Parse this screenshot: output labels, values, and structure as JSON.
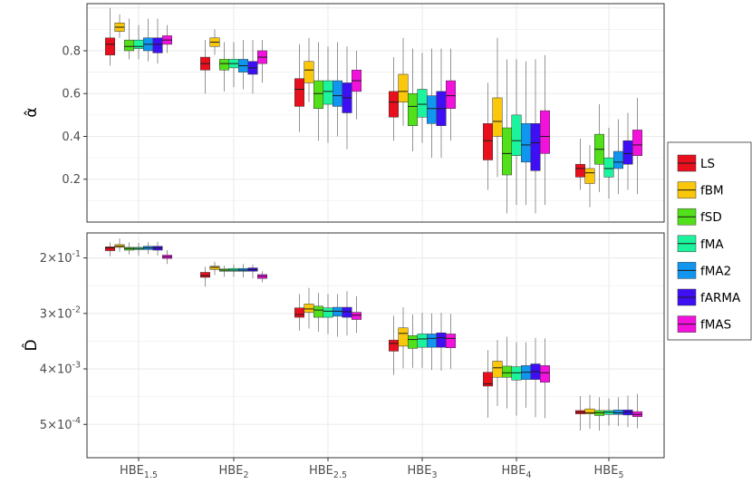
{
  "chart_data": [
    {
      "type": "boxplot",
      "panel": "top",
      "ylabel": "α̂",
      "ylim": [
        0.0,
        1.02
      ],
      "yticks": [
        0.2,
        0.4,
        0.6,
        0.8
      ],
      "ytick_labels": [
        "0.2",
        "0.4",
        "0.6",
        "0.8"
      ],
      "grid": true,
      "categories": [
        "HBE_1.5",
        "HBE_2",
        "HBE_2.5",
        "HBE_3",
        "HBE_4",
        "HBE_5"
      ],
      "series": [
        {
          "name": "LS",
          "boxes": [
            [
              0.73,
              0.78,
              0.83,
              0.86,
              1.0
            ],
            [
              0.6,
              0.71,
              0.74,
              0.77,
              0.85
            ],
            [
              0.42,
              0.54,
              0.62,
              0.67,
              0.83
            ],
            [
              0.38,
              0.49,
              0.56,
              0.61,
              0.77
            ],
            [
              0.15,
              0.29,
              0.38,
              0.46,
              0.65
            ],
            [
              0.15,
              0.21,
              0.25,
              0.27,
              0.39
            ]
          ]
        },
        {
          "name": "fBM",
          "boxes": [
            [
              0.86,
              0.89,
              0.91,
              0.93,
              0.97
            ],
            [
              0.78,
              0.82,
              0.84,
              0.86,
              0.9
            ],
            [
              0.56,
              0.65,
              0.71,
              0.75,
              0.86
            ],
            [
              0.45,
              0.56,
              0.61,
              0.69,
              0.86
            ],
            [
              0.21,
              0.4,
              0.47,
              0.58,
              0.86
            ],
            [
              0.07,
              0.18,
              0.23,
              0.25,
              0.36
            ]
          ]
        },
        {
          "name": "fSD",
          "boxes": [
            [
              0.76,
              0.8,
              0.82,
              0.85,
              0.95
            ],
            [
              0.61,
              0.71,
              0.74,
              0.76,
              0.84
            ],
            [
              0.38,
              0.53,
              0.6,
              0.66,
              0.84
            ],
            [
              0.33,
              0.45,
              0.54,
              0.6,
              0.81
            ],
            [
              0.04,
              0.22,
              0.32,
              0.44,
              0.76
            ],
            [
              0.14,
              0.27,
              0.34,
              0.41,
              0.55
            ]
          ]
        },
        {
          "name": "fMA",
          "boxes": [
            [
              0.76,
              0.81,
              0.82,
              0.85,
              0.92
            ],
            [
              0.63,
              0.72,
              0.74,
              0.76,
              0.84
            ],
            [
              0.37,
              0.55,
              0.61,
              0.66,
              0.82
            ],
            [
              0.37,
              0.49,
              0.55,
              0.62,
              0.79
            ],
            [
              0.08,
              0.31,
              0.38,
              0.5,
              0.76
            ],
            [
              0.11,
              0.21,
              0.25,
              0.3,
              0.44
            ]
          ]
        },
        {
          "name": "fMA2",
          "boxes": [
            [
              0.75,
              0.8,
              0.83,
              0.86,
              0.95
            ],
            [
              0.62,
              0.7,
              0.73,
              0.76,
              0.85
            ],
            [
              0.4,
              0.54,
              0.59,
              0.66,
              0.84
            ],
            [
              0.3,
              0.46,
              0.53,
              0.59,
              0.81
            ],
            [
              0.08,
              0.28,
              0.36,
              0.46,
              0.75
            ],
            [
              0.13,
              0.25,
              0.28,
              0.33,
              0.48
            ]
          ]
        },
        {
          "name": "fARMA",
          "boxes": [
            [
              0.74,
              0.79,
              0.83,
              0.86,
              0.95
            ],
            [
              0.6,
              0.69,
              0.72,
              0.75,
              0.85
            ],
            [
              0.34,
              0.51,
              0.58,
              0.65,
              0.82
            ],
            [
              0.3,
              0.45,
              0.53,
              0.61,
              0.81
            ],
            [
              0.04,
              0.24,
              0.37,
              0.46,
              0.76
            ],
            [
              0.15,
              0.27,
              0.32,
              0.38,
              0.51
            ]
          ]
        },
        {
          "name": "fMAS",
          "boxes": [
            [
              0.79,
              0.83,
              0.85,
              0.87,
              0.92
            ],
            [
              0.65,
              0.74,
              0.77,
              0.8,
              0.85
            ],
            [
              0.48,
              0.61,
              0.66,
              0.71,
              0.8
            ],
            [
              0.38,
              0.53,
              0.59,
              0.66,
              0.81
            ],
            [
              0.08,
              0.32,
              0.4,
              0.52,
              0.78
            ],
            [
              0.13,
              0.31,
              0.36,
              0.43,
              0.58
            ]
          ]
        }
      ]
    },
    {
      "type": "boxplot",
      "panel": "bottom",
      "ylabel": "D̂",
      "yticks": [
        {
          "mantissa": "2",
          "exponent": "-1"
        },
        {
          "mantissa": "3",
          "exponent": "-2"
        },
        {
          "mantissa": "4",
          "exponent": "-3"
        },
        {
          "mantissa": "5",
          "exponent": "-4"
        }
      ],
      "tick_positions": [
        1,
        2,
        3,
        4
      ],
      "ylim": [
        0.55,
        4.6
      ],
      "grid": true,
      "note": "values in tick-index units (1 = 2×10^-1, 2 = 3×10^-2, 3 = 4×10^-3, 4 = 5×10^-4)",
      "categories": [
        "HBE_1.5",
        "HBE_2",
        "HBE_2.5",
        "HBE_3",
        "HBE_4",
        "HBE_5"
      ],
      "series": [
        {
          "name": "LS",
          "boxes": [
            [
              0.72,
              0.8,
              0.82,
              0.87,
              0.97
            ],
            [
              1.16,
              1.26,
              1.32,
              1.35,
              1.52
            ],
            [
              1.65,
              1.9,
              2.02,
              2.07,
              2.31
            ],
            [
              2.04,
              2.48,
              2.54,
              2.68,
              3.11
            ],
            [
              2.66,
              3.06,
              3.27,
              3.31,
              3.88
            ],
            [
              3.49,
              3.75,
              3.78,
              3.81,
              4.11
            ]
          ]
        },
        {
          "name": "fBM",
          "boxes": [
            [
              0.65,
              0.76,
              0.79,
              0.81,
              0.89
            ],
            [
              1.07,
              1.15,
              1.17,
              1.21,
              1.31
            ],
            [
              1.54,
              1.83,
              1.92,
              1.98,
              2.27
            ],
            [
              1.89,
              2.26,
              2.36,
              2.59,
              2.99
            ],
            [
              2.48,
              2.86,
              2.98,
              3.15,
              3.67
            ],
            [
              3.47,
              3.72,
              3.79,
              3.81,
              4.08
            ]
          ]
        },
        {
          "name": "fSD",
          "boxes": [
            [
              0.72,
              0.81,
              0.83,
              0.86,
              0.94
            ],
            [
              1.14,
              1.2,
              1.22,
              1.24,
              1.34
            ],
            [
              1.63,
              1.87,
              1.94,
              2.07,
              2.33
            ],
            [
              2.02,
              2.4,
              2.47,
              2.63,
              2.98
            ],
            [
              2.42,
              2.95,
              3.07,
              3.15,
              3.71
            ],
            [
              3.51,
              3.75,
              3.79,
              3.84,
              4.11
            ]
          ]
        },
        {
          "name": "fMA",
          "boxes": [
            [
              0.73,
              0.81,
              0.83,
              0.85,
              0.96
            ],
            [
              1.12,
              1.19,
              1.22,
              1.24,
              1.34
            ],
            [
              1.65,
              1.9,
              1.96,
              2.07,
              2.37
            ],
            [
              1.99,
              2.37,
              2.46,
              2.61,
              2.98
            ],
            [
              2.52,
              2.96,
              3.07,
              3.2,
              3.84
            ],
            [
              3.53,
              3.75,
              3.78,
              3.82,
              4.02
            ]
          ]
        },
        {
          "name": "fMA2",
          "boxes": [
            [
              0.72,
              0.79,
              0.82,
              0.85,
              0.93
            ],
            [
              1.11,
              1.19,
              1.22,
              1.24,
              1.35
            ],
            [
              1.65,
              1.89,
              1.96,
              2.05,
              2.42
            ],
            [
              2.0,
              2.37,
              2.45,
              2.61,
              3.02
            ],
            [
              2.52,
              2.94,
              3.06,
              3.19,
              3.7
            ],
            [
              3.51,
              3.74,
              3.79,
              3.82,
              4.03
            ]
          ]
        },
        {
          "name": "fARMA",
          "boxes": [
            [
              0.71,
              0.79,
              0.82,
              0.86,
              0.96
            ],
            [
              1.12,
              1.18,
              1.21,
              1.24,
              1.37
            ],
            [
              1.6,
              1.89,
              1.97,
              2.07,
              2.4
            ],
            [
              1.99,
              2.35,
              2.44,
              2.61,
              3.03
            ],
            [
              2.44,
              2.91,
              3.05,
              3.19,
              3.87
            ],
            [
              3.48,
              3.74,
              3.78,
              3.83,
              4.05
            ]
          ]
        },
        {
          "name": "fMAS",
          "boxes": [
            [
              0.86,
              0.95,
              0.98,
              1.01,
              1.11
            ],
            [
              1.24,
              1.3,
              1.33,
              1.37,
              1.44
            ],
            [
              1.69,
              1.98,
              2.03,
              2.11,
              2.35
            ],
            [
              2.01,
              2.37,
              2.45,
              2.62,
              3.0
            ],
            [
              2.45,
              2.94,
              3.07,
              3.24,
              3.89
            ],
            [
              3.45,
              3.77,
              3.82,
              3.86,
              4.07
            ]
          ]
        }
      ]
    }
  ],
  "x_tick_labels": [
    {
      "base": "HBE",
      "sub": "1.5"
    },
    {
      "base": "HBE",
      "sub": "2"
    },
    {
      "base": "HBE",
      "sub": "2.5"
    },
    {
      "base": "HBE",
      "sub": "3"
    },
    {
      "base": "HBE",
      "sub": "4"
    },
    {
      "base": "HBE",
      "sub": "5"
    }
  ],
  "legend": {
    "placement": "right",
    "entries": [
      {
        "label": "LS",
        "color": "#e8101d"
      },
      {
        "label": "fBM",
        "color": "#fac70b"
      },
      {
        "label": "fSD",
        "color": "#52e01a"
      },
      {
        "label": "fMA",
        "color": "#1bf49c"
      },
      {
        "label": "fMA2",
        "color": "#1196f0"
      },
      {
        "label": "fARMA",
        "color": "#3d0ff2"
      },
      {
        "label": "fMAS",
        "color": "#f212dc"
      }
    ]
  }
}
